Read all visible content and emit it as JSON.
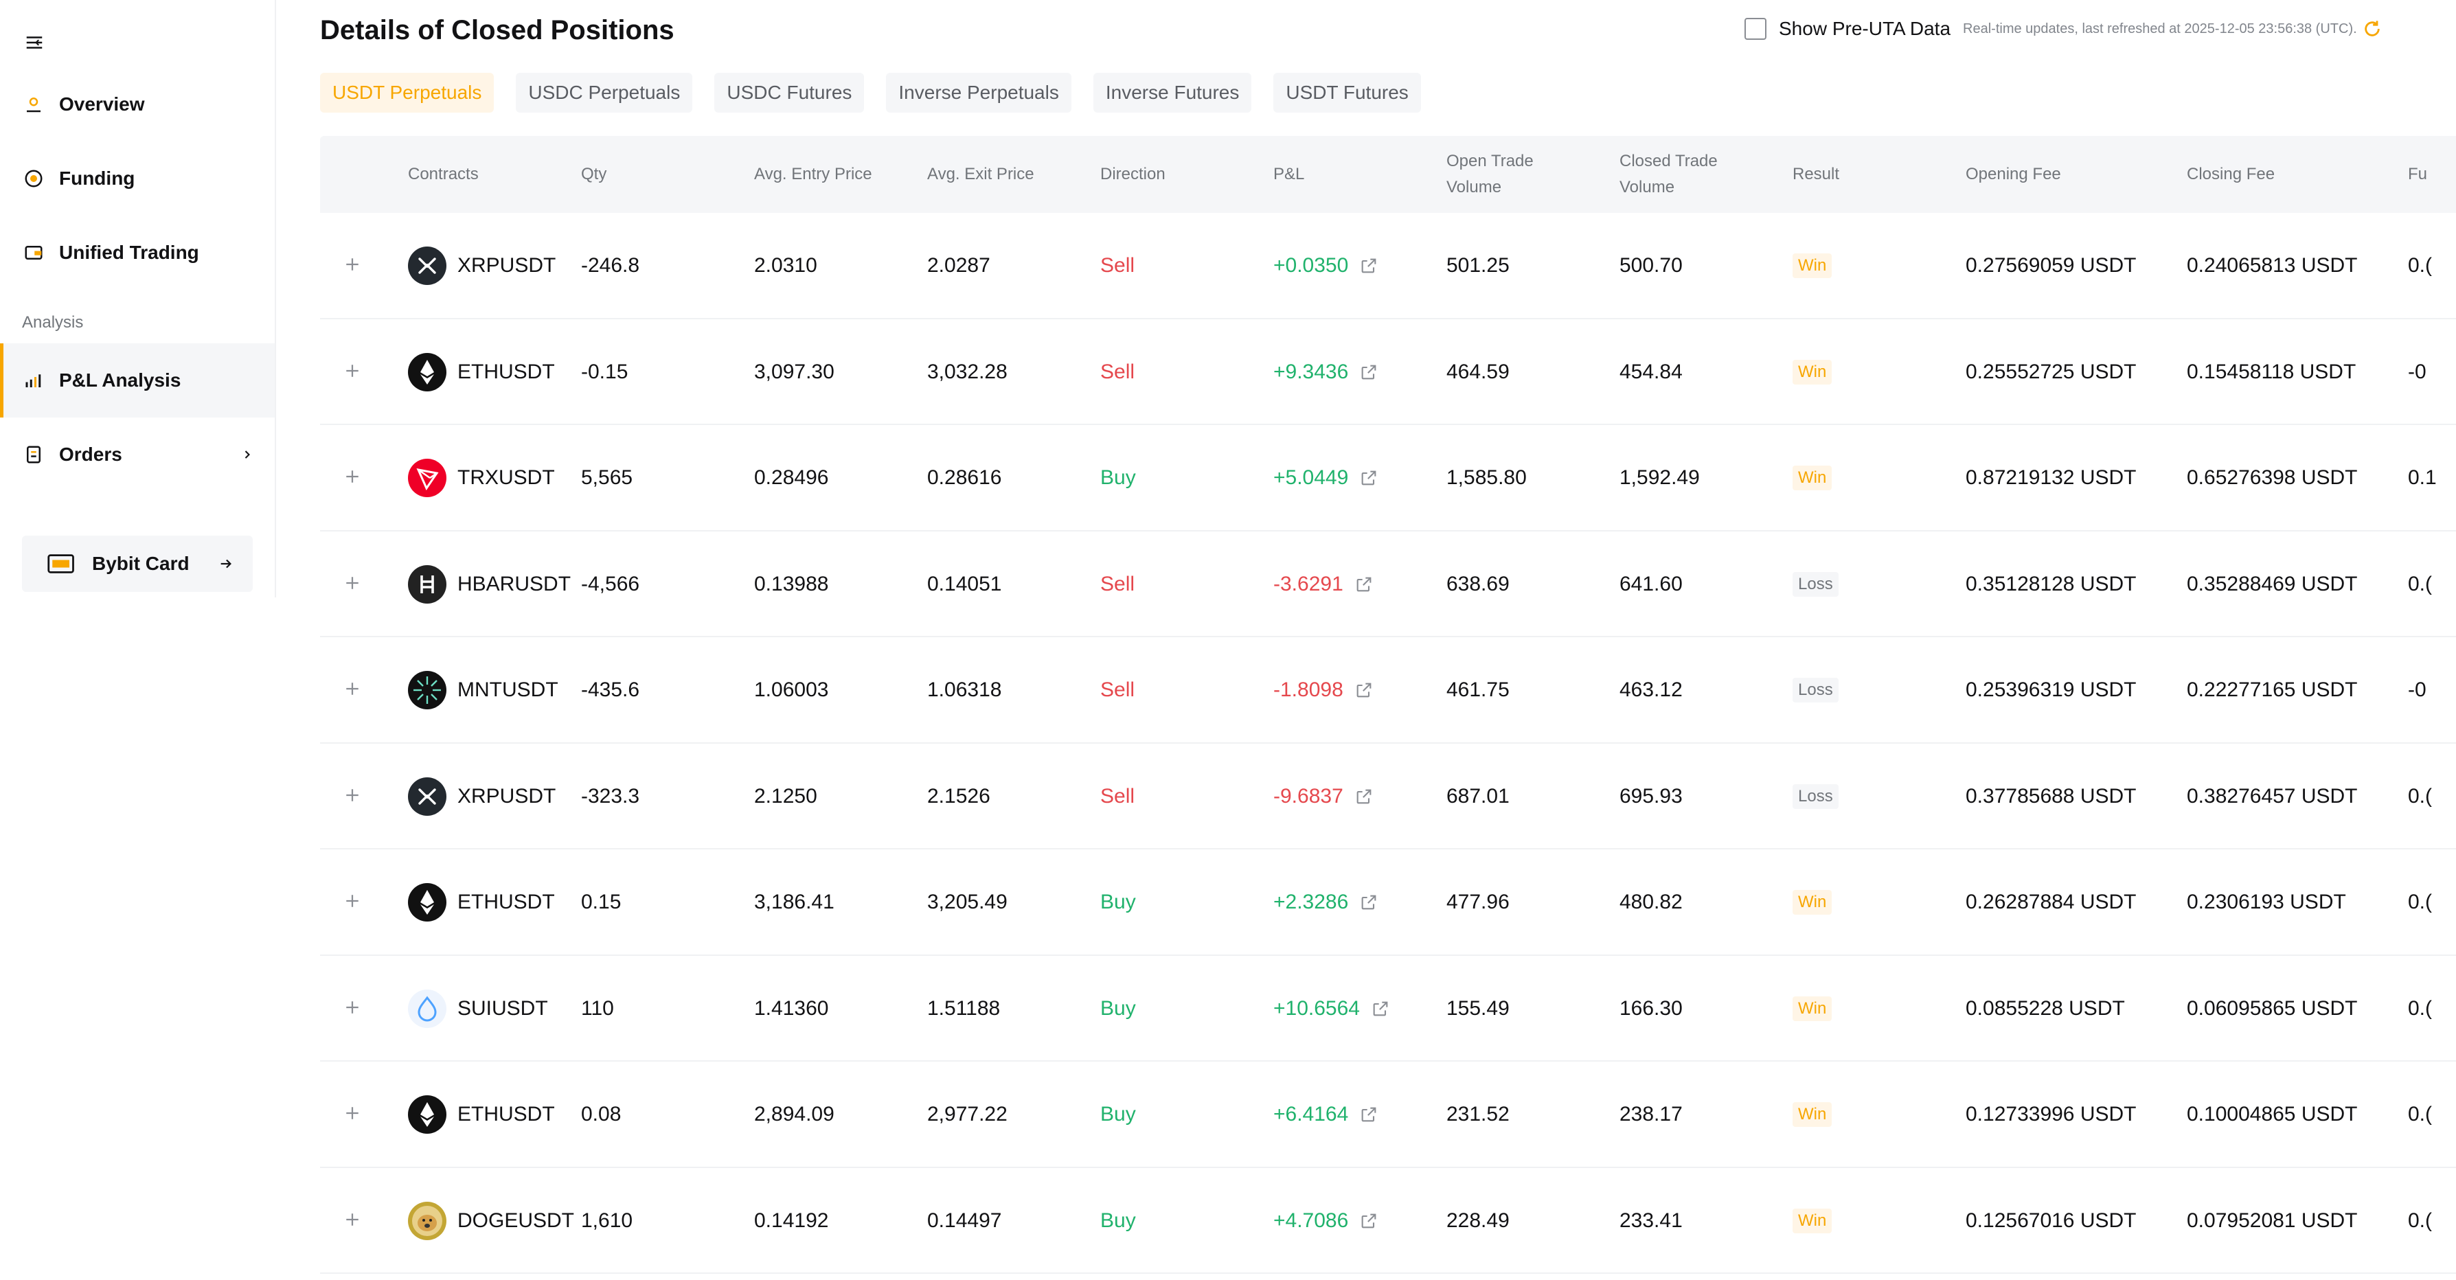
{
  "sidebar": {
    "items": [
      {
        "label": "Overview",
        "icon": "overview-icon"
      },
      {
        "label": "Funding",
        "icon": "funding-icon"
      },
      {
        "label": "Unified Trading",
        "icon": "wallet-icon"
      }
    ],
    "section_label": "Analysis",
    "analysis_items": [
      {
        "label": "P&L Analysis",
        "icon": "chart-bars-icon",
        "active": true
      },
      {
        "label": "Orders",
        "icon": "orders-icon"
      }
    ],
    "card_button": {
      "label": "Bybit Card"
    }
  },
  "header": {
    "title": "Details of Closed Positions",
    "pre_uta_label": "Show Pre-UTA Data",
    "refresh_text": "Real-time updates, last refreshed at 2025-12-05 23:56:38 (UTC)."
  },
  "tabs": [
    {
      "label": "USDT Perpetuals",
      "active": true
    },
    {
      "label": "USDC Perpetuals"
    },
    {
      "label": "USDC Futures"
    },
    {
      "label": "Inverse Perpetuals"
    },
    {
      "label": "Inverse Futures"
    },
    {
      "label": "USDT Futures"
    }
  ],
  "table": {
    "columns": {
      "contracts": "Contracts",
      "qty": "Qty",
      "entry": "Avg. Entry Price",
      "exit": "Avg. Exit Price",
      "direction": "Direction",
      "pnl": "P&L",
      "open_vol": "Open Trade Volume",
      "closed_vol": "Closed Trade Volume",
      "result": "Result",
      "opening_fee": "Opening Fee",
      "closing_fee": "Closing Fee",
      "funding": "Fu"
    },
    "rows": [
      {
        "contract": "XRPUSDT",
        "coin": "xrp",
        "qty": "-246.8",
        "entry": "2.0310",
        "exit": "2.0287",
        "direction": "Sell",
        "pnl": "+0.0350",
        "open_vol": "501.25",
        "closed_vol": "500.70",
        "result": "Win",
        "opening_fee": "0.27569059 USDT",
        "closing_fee": "0.24065813 USDT",
        "funding": "0.("
      },
      {
        "contract": "ETHUSDT",
        "coin": "eth",
        "qty": "-0.15",
        "entry": "3,097.30",
        "exit": "3,032.28",
        "direction": "Sell",
        "pnl": "+9.3436",
        "open_vol": "464.59",
        "closed_vol": "454.84",
        "result": "Win",
        "opening_fee": "0.25552725 USDT",
        "closing_fee": "0.15458118 USDT",
        "funding": "-0"
      },
      {
        "contract": "TRXUSDT",
        "coin": "trx",
        "qty": "5,565",
        "entry": "0.28496",
        "exit": "0.28616",
        "direction": "Buy",
        "pnl": "+5.0449",
        "open_vol": "1,585.80",
        "closed_vol": "1,592.49",
        "result": "Win",
        "opening_fee": "0.87219132 USDT",
        "closing_fee": "0.65276398 USDT",
        "funding": "0.1"
      },
      {
        "contract": "HBARUSDT",
        "coin": "hbar",
        "qty": "-4,566",
        "entry": "0.13988",
        "exit": "0.14051",
        "direction": "Sell",
        "pnl": "-3.6291",
        "open_vol": "638.69",
        "closed_vol": "641.60",
        "result": "Loss",
        "opening_fee": "0.35128128 USDT",
        "closing_fee": "0.35288469 USDT",
        "funding": "0.("
      },
      {
        "contract": "MNTUSDT",
        "coin": "mnt",
        "qty": "-435.6",
        "entry": "1.06003",
        "exit": "1.06318",
        "direction": "Sell",
        "pnl": "-1.8098",
        "open_vol": "461.75",
        "closed_vol": "463.12",
        "result": "Loss",
        "opening_fee": "0.25396319 USDT",
        "closing_fee": "0.22277165 USDT",
        "funding": "-0"
      },
      {
        "contract": "XRPUSDT",
        "coin": "xrp",
        "qty": "-323.3",
        "entry": "2.1250",
        "exit": "2.1526",
        "direction": "Sell",
        "pnl": "-9.6837",
        "open_vol": "687.01",
        "closed_vol": "695.93",
        "result": "Loss",
        "opening_fee": "0.37785688 USDT",
        "closing_fee": "0.38276457 USDT",
        "funding": "0.("
      },
      {
        "contract": "ETHUSDT",
        "coin": "eth",
        "qty": "0.15",
        "entry": "3,186.41",
        "exit": "3,205.49",
        "direction": "Buy",
        "pnl": "+2.3286",
        "open_vol": "477.96",
        "closed_vol": "480.82",
        "result": "Win",
        "opening_fee": "0.26287884 USDT",
        "closing_fee": "0.2306193 USDT",
        "funding": "0.("
      },
      {
        "contract": "SUIUSDT",
        "coin": "sui",
        "qty": "110",
        "entry": "1.41360",
        "exit": "1.51188",
        "direction": "Buy",
        "pnl": "+10.6564",
        "open_vol": "155.49",
        "closed_vol": "166.30",
        "result": "Win",
        "opening_fee": "0.0855228 USDT",
        "closing_fee": "0.06095865 USDT",
        "funding": "0.("
      },
      {
        "contract": "ETHUSDT",
        "coin": "eth",
        "qty": "0.08",
        "entry": "2,894.09",
        "exit": "2,977.22",
        "direction": "Buy",
        "pnl": "+6.4164",
        "open_vol": "231.52",
        "closed_vol": "238.17",
        "result": "Win",
        "opening_fee": "0.12733996 USDT",
        "closing_fee": "0.10004865 USDT",
        "funding": "0.("
      },
      {
        "contract": "DOGEUSDT",
        "coin": "doge",
        "qty": "1,610",
        "entry": "0.14192",
        "exit": "0.14497",
        "direction": "Buy",
        "pnl": "+4.7086",
        "open_vol": "228.49",
        "closed_vol": "233.41",
        "result": "Win",
        "opening_fee": "0.12567016 USDT",
        "closing_fee": "0.07952081 USDT",
        "funding": "0.("
      }
    ]
  },
  "colors": {
    "accent": "#f7a600",
    "buy": "#20b26c",
    "sell": "#e5484d",
    "muted": "#71757a"
  }
}
